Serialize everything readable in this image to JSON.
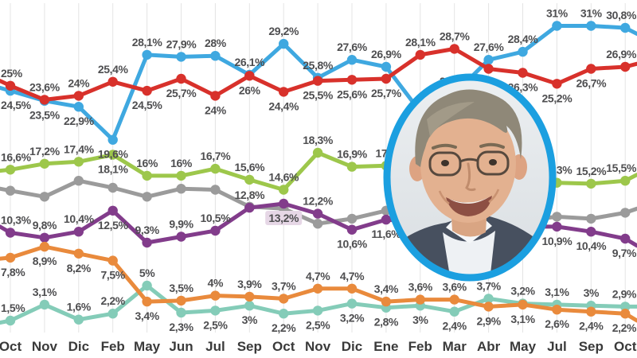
{
  "chart_data": {
    "type": "line",
    "categories": [
      "Oct",
      "Nov",
      "Dic",
      "Feb",
      "May",
      "Jun",
      "Jul",
      "Sep",
      "Oct",
      "Nov",
      "Dic",
      "Ene",
      "Feb",
      "Mar",
      "Abr",
      "May",
      "Jul",
      "Sep",
      "Oct"
    ],
    "ylim": [
      0,
      33
    ],
    "grid": "vertical",
    "legend": "none",
    "series": [
      {
        "name": "gray",
        "color": "#9b9b9b",
        "values": [
          14.5,
          13.9,
          15.5,
          14.8,
          13.9,
          14.7,
          14.6,
          12.9,
          12.7,
          11.2,
          11.7,
          12.5,
          12.2,
          11.9,
          11.6,
          11.5,
          11.9,
          11.7,
          12.3
        ],
        "labels": [
          null,
          null,
          null,
          null,
          null,
          null,
          null,
          null,
          null,
          null,
          null,
          null,
          null,
          null,
          null,
          null,
          null,
          null,
          null
        ],
        "label_side": [
          null,
          null,
          null,
          null,
          null,
          null,
          null,
          null,
          null,
          null,
          null,
          null,
          null,
          null,
          null,
          null,
          null,
          null,
          null
        ],
        "edge_start": 14.7,
        "edge_end": 12.7
      },
      {
        "name": "green",
        "color": "#9dc74b",
        "values": [
          16.6,
          17.2,
          17.4,
          18.1,
          16,
          16,
          16.7,
          15.6,
          14.6,
          18.3,
          16.9,
          17,
          16.4,
          15.8,
          15.5,
          15.4,
          15.3,
          15.2,
          15.5
        ],
        "labels": [
          "16,6%",
          "17,2%",
          "17,4%",
          "18,1%",
          "16%",
          "16%",
          "16,7%",
          "15,6%",
          "14,6%",
          "18,3%",
          "16,9%",
          "17%",
          null,
          null,
          null,
          null,
          "15,3%",
          "15,2%",
          "15,5%"
        ],
        "label_side": [
          "above",
          "above",
          "above",
          "below",
          "above",
          "above",
          "above",
          "above",
          "above",
          "above",
          "above",
          "above",
          null,
          null,
          null,
          null,
          "above",
          "above",
          "above"
        ],
        "edge_start": 16.5,
        "edge_end": 16.1
      },
      {
        "name": "purple",
        "color": "#823c8b",
        "values": [
          10.3,
          9.8,
          10.4,
          12.5,
          9.3,
          9.9,
          10.5,
          12.8,
          13.2,
          12.2,
          10.6,
          11.6,
          11.4,
          11.2,
          11.0,
          10.9,
          10.9,
          10.4,
          9.7
        ],
        "labels": [
          "10,3%",
          "9,8%",
          "10,4%",
          "12,5%",
          "9,3%",
          "9,9%",
          "10,5%",
          "12,8%",
          "13,2%",
          "12,2%",
          "10,6%",
          "11,6%",
          null,
          null,
          null,
          null,
          "10,9%",
          "10,4%",
          "9,7%"
        ],
        "label_side": [
          "above",
          "above",
          "above",
          "below",
          "above",
          "above",
          "above",
          "above",
          "below",
          "above",
          "below",
          "below",
          null,
          null,
          null,
          null,
          "below",
          "below",
          "below"
        ],
        "highlight_index": 8,
        "highlight_bg": "#e6d7e6",
        "edge_start": 10.9,
        "edge_end": 9.0
      },
      {
        "name": "teal",
        "color": "#84ccb8",
        "values": [
          1.5,
          3.1,
          1.6,
          2.2,
          5,
          2.3,
          2.5,
          3,
          2.2,
          2.5,
          3.2,
          2.8,
          3,
          2.4,
          3.7,
          3.2,
          3.1,
          3,
          2.9
        ],
        "labels": [
          "1,5%",
          "3,1%",
          "1,6%",
          "2,2%",
          "5%",
          "2,3%",
          "2,5%",
          "3%",
          "2,2%",
          "2,5%",
          "3,2%",
          "2,8%",
          "3%",
          "2,4%",
          "3,7%",
          "3,2%",
          "3,1%",
          "3%",
          "2,9%"
        ],
        "label_side": [
          "above",
          "above",
          "above",
          "above",
          "above",
          "below",
          "below",
          "below",
          "below",
          "below",
          "below",
          "below",
          "below",
          "below",
          "above",
          "above",
          "above",
          "above",
          "above"
        ],
        "edge_start": 1.3,
        "edge_end": 2.9
      },
      {
        "name": "orange",
        "color": "#e98a3c",
        "values": [
          7.8,
          8.9,
          8.2,
          7.5,
          3.4,
          3.5,
          4,
          3.9,
          3.7,
          4.7,
          4.7,
          3.4,
          3.6,
          3.6,
          2.9,
          3.1,
          2.6,
          2.4,
          2.2
        ],
        "labels": [
          "7,8%",
          "8,9%",
          "8,2%",
          "7,5%",
          "3,4%",
          "3,5%",
          "4%",
          "3,9%",
          "3,7%",
          "4,7%",
          "4,7%",
          "3,4%",
          "3,6%",
          "3,6%",
          "2,9%",
          "3,1%",
          "2,6%",
          "2,4%",
          "2,2%"
        ],
        "label_side": [
          "below",
          "below",
          "below",
          "below",
          "below",
          "above",
          "above",
          "above",
          "above",
          "above",
          "above",
          "above",
          "above",
          "above",
          "below",
          "below",
          "below",
          "below",
          "below"
        ],
        "edge_start": 7.7,
        "edge_end": 1.5
      },
      {
        "name": "blue",
        "color": "#3fa8e0",
        "values": [
          24.5,
          23.5,
          22.9,
          19.6,
          28.1,
          27.9,
          28,
          26.1,
          29.2,
          25.8,
          27.6,
          26.9,
          22.4,
          24.2,
          27.6,
          28.4,
          31,
          31,
          30.8
        ],
        "labels": [
          "24,5%",
          "23,5%",
          "22,9%",
          "19,6%",
          "28,1%",
          "27,9%",
          "28%",
          "26,1%",
          "29,2%",
          "25,8%",
          "27,6%",
          "26,9%",
          null,
          "24,2%",
          "27,6%",
          "28,4%",
          "31%",
          "31%",
          "30,8%"
        ],
        "label_side": [
          "below",
          "below",
          "below",
          "below",
          "above",
          "above",
          "above",
          "above",
          "above",
          "above",
          "above",
          "above",
          null,
          "above",
          "above",
          "above",
          "above",
          "above",
          "above"
        ],
        "edge_start": 24.8,
        "edge_end": 30.2
      },
      {
        "name": "red",
        "color": "#d8312b",
        "values": [
          25,
          23.6,
          24,
          25.4,
          24.5,
          25.7,
          24,
          26,
          24.4,
          25.5,
          25.6,
          25.7,
          28.1,
          28.7,
          26.7,
          26.3,
          25.2,
          26.7,
          26.9
        ],
        "labels": [
          "25%",
          "23,6%",
          "24%",
          "25,4%",
          "24,5%",
          "25,7%",
          "24%",
          "26%",
          "24,4%",
          "25,5%",
          "25,6%",
          "25,7%",
          "28,1%",
          "28,7%",
          null,
          "26,3%",
          "25,2%",
          "26,7%",
          "26,9%"
        ],
        "label_side": [
          "above",
          "above",
          "above",
          "above",
          "below",
          "below",
          "below",
          "below",
          "below",
          "below",
          "below",
          "below",
          "above",
          "above",
          null,
          "below",
          "below",
          "below",
          "above"
        ],
        "edge_start": 25.5,
        "edge_end": 27.2
      }
    ]
  },
  "photo": {
    "ring_color": "#1b9fe0"
  }
}
